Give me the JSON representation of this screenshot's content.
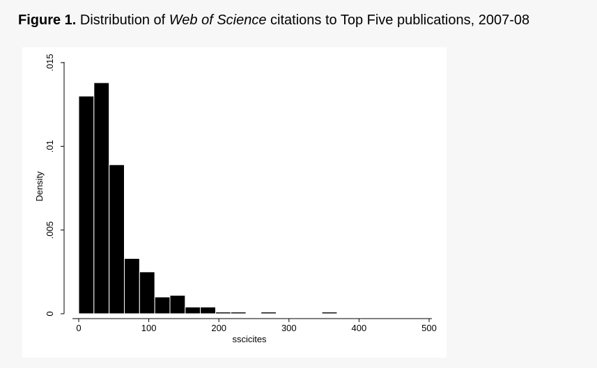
{
  "figure": {
    "label": "Figure 1.",
    "title_before": "Distribution of",
    "title_italic": "Web of Science",
    "title_after": "citations to Top Five publications, 2007-08"
  },
  "chart_data": {
    "type": "bar",
    "subtype": "histogram",
    "xlabel": "sscicites",
    "ylabel": "Density",
    "xlim": [
      -10,
      510
    ],
    "ylim": [
      0,
      0.015
    ],
    "x_ticks": [
      0,
      100,
      200,
      300,
      400,
      500
    ],
    "x_tick_labels": [
      "0",
      "100",
      "200",
      "300",
      "400",
      "500"
    ],
    "y_ticks": [
      0,
      0.005,
      0.01,
      0.015
    ],
    "y_tick_labels": [
      "0",
      ".005",
      ".01",
      ".015"
    ],
    "bin_width": 21.7,
    "bins": [
      {
        "x0": 0,
        "x1": 21.7,
        "density": 0.013
      },
      {
        "x0": 21.7,
        "x1": 43.4,
        "density": 0.0138
      },
      {
        "x0": 43.4,
        "x1": 65.1,
        "density": 0.0089
      },
      {
        "x0": 65.1,
        "x1": 86.8,
        "density": 0.0033
      },
      {
        "x0": 86.8,
        "x1": 108.5,
        "density": 0.0025
      },
      {
        "x0": 108.5,
        "x1": 130.2,
        "density": 0.001
      },
      {
        "x0": 130.2,
        "x1": 151.9,
        "density": 0.0011
      },
      {
        "x0": 151.9,
        "x1": 173.6,
        "density": 0.0004
      },
      {
        "x0": 173.6,
        "x1": 195.3,
        "density": 0.0004
      },
      {
        "x0": 195.3,
        "x1": 217.0,
        "density": 0.0001
      },
      {
        "x0": 217.0,
        "x1": 238.7,
        "density": 0.0001
      },
      {
        "x0": 260.1,
        "x1": 281.8,
        "density": 0.0001
      },
      {
        "x0": 347.0,
        "x1": 368.7,
        "density": 0.0001
      }
    ],
    "bar_color": "#000000",
    "background": "#ffffff",
    "grid": false,
    "legend": false
  }
}
